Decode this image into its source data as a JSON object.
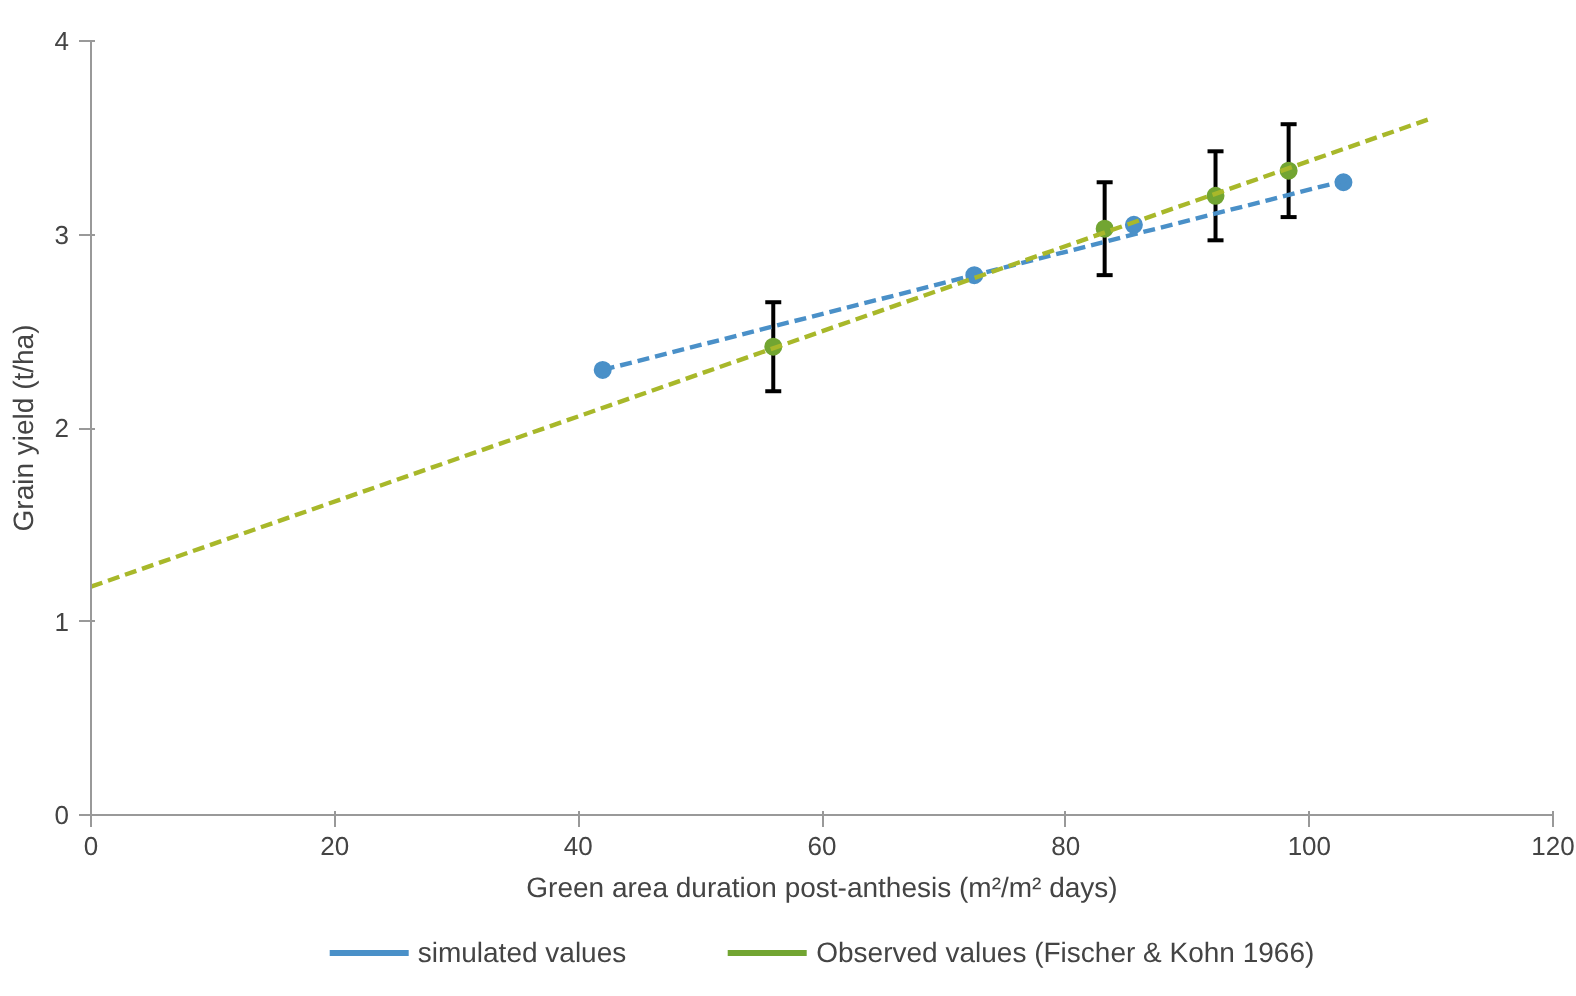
{
  "chart_data": {
    "type": "scatter",
    "xlabel": "Green area duration post-anthesis (m²/m² days)",
    "ylabel": "Grain yield (t/ha)",
    "xlim": [
      0,
      120
    ],
    "xticks": [
      0,
      20,
      40,
      60,
      80,
      100,
      120
    ],
    "ylim": [
      0,
      4
    ],
    "yticks": [
      0,
      1,
      2,
      3,
      4
    ],
    "grid": false,
    "legend": "bottom",
    "marker": "circle",
    "series": [
      {
        "name": "simulated values",
        "color": "#4a90c8",
        "x": [
          42,
          72.5,
          85.6,
          102.8
        ],
        "values": [
          2.3,
          2.79,
          3.05,
          3.27
        ]
      },
      {
        "type": "line",
        "line_style": "dashed",
        "marker": "none",
        "color": "#4a90c8",
        "x": [
          42,
          103
        ],
        "values": [
          2.3,
          3.28
        ]
      },
      {
        "name": "Observed values (Fischer & Kohn 1966)",
        "color": "#72a532",
        "x": [
          56,
          83.2,
          92.3,
          98.3
        ],
        "values": [
          2.42,
          3.03,
          3.2,
          3.33
        ],
        "errors": [
          0.23,
          0.24,
          0.23,
          0.24
        ]
      },
      {
        "type": "line",
        "line_style": "dashed",
        "marker": "none",
        "color": "#a8b82a",
        "x": [
          0,
          110
        ],
        "values": [
          1.18,
          3.6
        ]
      }
    ]
  }
}
